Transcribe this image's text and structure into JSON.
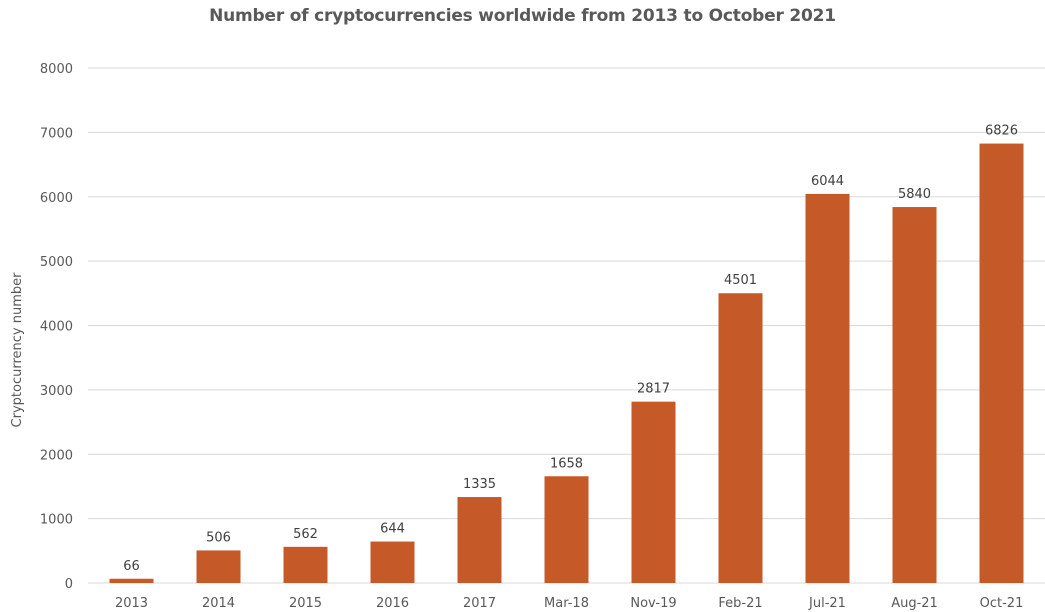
{
  "chart_data": {
    "type": "bar",
    "title": "Number of cryptocurrencies worldwide from 2013 to October 2021",
    "xlabel": "",
    "ylabel": "Cryptocurrency number",
    "categories": [
      "2013",
      "2014",
      "2015",
      "2016",
      "2017",
      "Mar-18",
      "Nov-19",
      "Feb-21",
      "Jul-21",
      "Aug-21",
      "Oct-21"
    ],
    "values": [
      66,
      506,
      562,
      644,
      1335,
      1658,
      2817,
      4501,
      6044,
      5840,
      6826
    ],
    "data_labels": [
      "66",
      "506",
      "562",
      "644",
      "1335",
      "1658",
      "2817",
      "4501",
      "6044",
      "5840",
      "6826"
    ],
    "ylim": [
      0,
      8000
    ],
    "yticks": [
      "0",
      "1000",
      "2000",
      "3000",
      "4000",
      "5000",
      "6000",
      "7000",
      "8000"
    ],
    "grid": true,
    "legend": "none",
    "bar_color": "#c55a28"
  }
}
